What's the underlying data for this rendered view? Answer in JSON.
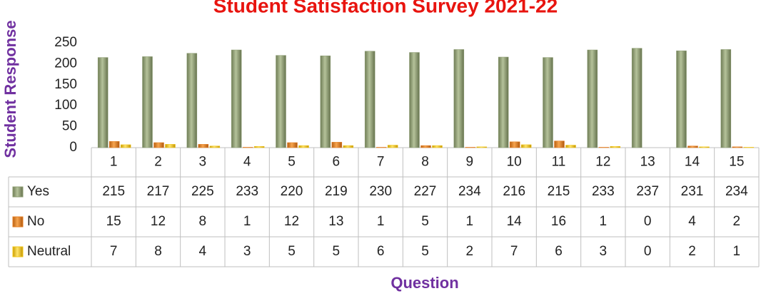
{
  "chart_data": {
    "type": "bar",
    "title": "Student Satisfaction Survey 2021-22",
    "y_label": "Student Response",
    "x_label": "Question",
    "categories": [
      "1",
      "2",
      "3",
      "4",
      "5",
      "6",
      "7",
      "8",
      "9",
      "10",
      "11",
      "12",
      "13",
      "14",
      "15"
    ],
    "series": [
      {
        "name": "Yes",
        "color": "#8c9c72",
        "values": [
          215,
          217,
          225,
          233,
          220,
          219,
          230,
          227,
          234,
          216,
          215,
          233,
          237,
          231,
          234
        ]
      },
      {
        "name": "No",
        "color": "#e67e22",
        "values": [
          15,
          12,
          8,
          1,
          12,
          13,
          1,
          5,
          1,
          14,
          16,
          1,
          0,
          4,
          2
        ]
      },
      {
        "name": "Neutral",
        "color": "#f2c618",
        "values": [
          7,
          8,
          4,
          3,
          5,
          5,
          6,
          5,
          2,
          7,
          6,
          3,
          0,
          2,
          1
        ]
      }
    ],
    "ylim": [
      0,
      250
    ],
    "yticks": [
      0,
      50,
      100,
      150,
      200,
      250
    ],
    "grid": false,
    "data_table": true
  }
}
